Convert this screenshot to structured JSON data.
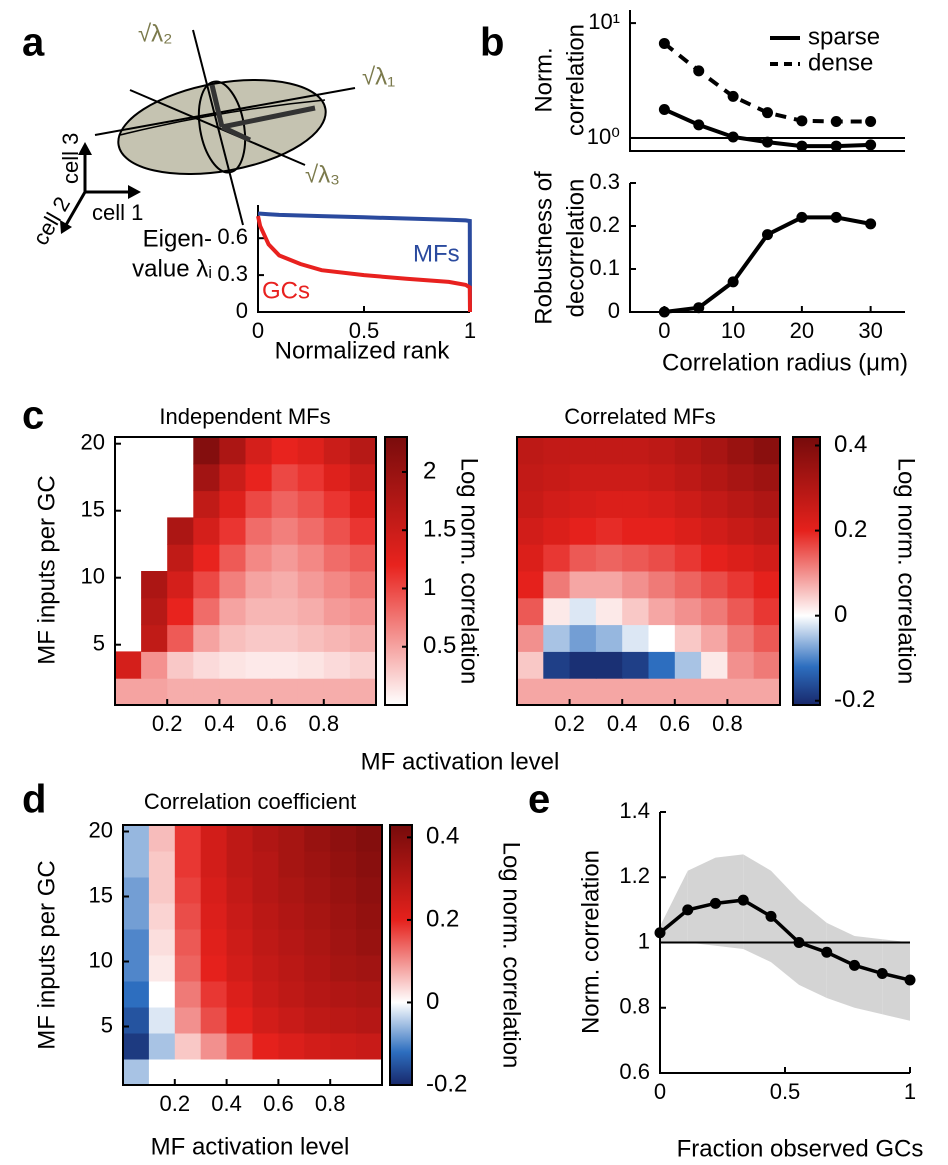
{
  "panel_labels": [
    "a",
    "b",
    "c",
    "d",
    "e"
  ],
  "diagram": {
    "eigen_labels": [
      "√λ₁",
      "√λ₂",
      "√λ₃"
    ],
    "cells": [
      "cell 1",
      "cell 2",
      "cell 3"
    ]
  },
  "chart_data": [
    {
      "type": "line",
      "xlabel": "Normalized rank",
      "ylabel": [
        "Eigen-",
        "value λᵢ"
      ],
      "x": [
        0,
        0.01,
        0.05,
        0.1,
        0.2,
        0.3,
        0.5,
        0.7,
        0.9,
        0.98,
        0.999,
        1
      ],
      "xlim": [
        0,
        1
      ],
      "ylim": [
        0,
        0.87
      ],
      "xticks": [
        0,
        0.5,
        1
      ],
      "yticks": [
        0,
        0.3,
        0.6
      ],
      "series": [
        {
          "name": "MFs",
          "color": "#2a4a9e",
          "values": [
            0.8,
            0.8,
            0.795,
            0.79,
            0.785,
            0.78,
            0.77,
            0.76,
            0.75,
            0.745,
            0.74,
            0
          ]
        },
        {
          "name": "GCs",
          "color": "#e8211f",
          "values": [
            0.78,
            0.7,
            0.55,
            0.46,
            0.39,
            0.34,
            0.3,
            0.27,
            0.245,
            0.22,
            0.2,
            0
          ]
        }
      ]
    },
    {
      "type": "line",
      "yscale": "log",
      "ylabel": [
        "Norm.",
        "correlation"
      ],
      "x": [
        0,
        5,
        10,
        15,
        20,
        25,
        30
      ],
      "xlim": [
        -5,
        35
      ],
      "ylim": [
        0.77,
        13
      ],
      "yticks": [
        {
          "value": 1,
          "label": "10⁰"
        },
        {
          "value": 10,
          "label": "10¹"
        }
      ],
      "hline": 1,
      "marker": true,
      "legend": "upper right",
      "series": [
        {
          "name": "sparse",
          "color": "#000000",
          "linestyle": "solid",
          "values": [
            1.77,
            1.3,
            1.02,
            0.92,
            0.85,
            0.85,
            0.87
          ]
        },
        {
          "name": "dense",
          "color": "#000000",
          "linestyle": "dashed",
          "values": [
            6.65,
            3.84,
            2.3,
            1.66,
            1.41,
            1.39,
            1.39
          ]
        }
      ]
    },
    {
      "type": "line",
      "xlabel": "Correlation radius (μm)",
      "ylabel": [
        "Robustness of",
        "decorrelation"
      ],
      "x": [
        0,
        5,
        10,
        15,
        20,
        25,
        30
      ],
      "xlim": [
        -5,
        35
      ],
      "ylim": [
        0,
        0.3
      ],
      "xticks": [
        0,
        10,
        20,
        30
      ],
      "yticks": [
        0,
        0.1,
        0.2,
        0.3
      ],
      "marker": true,
      "series": [
        {
          "color": "#000000",
          "linestyle": "solid",
          "values": [
            0,
            0.01,
            0.07,
            0.18,
            0.22,
            0.22,
            0.205
          ]
        }
      ]
    },
    {
      "type": "heatmap",
      "title": "Independent MFs",
      "ylabel": "MF inputs per GC",
      "xlabel": "MF activation level",
      "colorbar_label": "Log norm. correlation",
      "x": [
        0.05,
        0.15,
        0.25,
        0.35,
        0.45,
        0.55,
        0.65,
        0.75,
        0.85,
        0.95
      ],
      "y": [
        1.5,
        3.5,
        5.5,
        7.5,
        9.5,
        11.5,
        13.5,
        15.5,
        17.5,
        19.5
      ],
      "z": [
        [
          0.5,
          0.5,
          0.45,
          0.45,
          0.45,
          0.45,
          0.45,
          0.45,
          0.45,
          0.45
        ],
        [
          1.4,
          0.6,
          0.3,
          0.2,
          0.15,
          0.12,
          0.12,
          0.15,
          0.2,
          0.25
        ],
        [
          null,
          1.6,
          0.9,
          0.5,
          0.35,
          0.3,
          0.3,
          0.35,
          0.4,
          0.45
        ],
        [
          null,
          1.7,
          1.2,
          0.8,
          0.5,
          0.4,
          0.4,
          0.45,
          0.55,
          0.6
        ],
        [
          null,
          1.8,
          1.4,
          1.0,
          0.7,
          0.5,
          0.45,
          0.55,
          0.65,
          0.75
        ],
        [
          null,
          null,
          1.6,
          1.2,
          0.9,
          0.65,
          0.55,
          0.65,
          0.8,
          0.9
        ],
        [
          null,
          null,
          1.8,
          1.4,
          1.1,
          0.8,
          0.7,
          0.8,
          0.95,
          1.1
        ],
        [
          null,
          null,
          null,
          1.6,
          1.3,
          1.0,
          0.85,
          0.95,
          1.1,
          1.3
        ],
        [
          null,
          null,
          null,
          1.9,
          1.5,
          1.2,
          1.0,
          1.1,
          1.3,
          1.5
        ],
        [
          null,
          null,
          null,
          2.2,
          1.8,
          1.4,
          1.2,
          1.3,
          1.5,
          1.7
        ]
      ],
      "xlim": [
        0,
        1
      ],
      "ylim": [
        0.5,
        20.5
      ],
      "xticks": [
        0.2,
        0.4,
        0.6,
        0.8
      ],
      "yticks": [
        5,
        10,
        15,
        20
      ],
      "clim": [
        0,
        2.3
      ],
      "cticks": [
        0.5,
        1,
        1.5,
        2
      ],
      "colormap": [
        {
          "value": 0,
          "color": "#ffffff"
        },
        {
          "value": 1.2,
          "color": "#e8231e"
        },
        {
          "value": 2.3,
          "color": "#7a0c0c"
        }
      ]
    },
    {
      "type": "heatmap",
      "title": "Correlated MFs",
      "colorbar_label": "Log norm. correlation",
      "x": [
        0.05,
        0.15,
        0.25,
        0.35,
        0.45,
        0.55,
        0.65,
        0.75,
        0.85,
        0.95
      ],
      "y": [
        1.5,
        3.5,
        5.5,
        7.5,
        9.5,
        11.5,
        13.5,
        15.5,
        17.5,
        19.5
      ],
      "z": [
        [
          0.08,
          0.08,
          0.08,
          0.08,
          0.08,
          0.08,
          0.08,
          0.08,
          0.08,
          0.08
        ],
        [
          0.05,
          -0.18,
          -0.2,
          -0.2,
          -0.18,
          -0.12,
          -0.05,
          0.02,
          0.1,
          0.12
        ],
        [
          0.1,
          -0.05,
          -0.08,
          -0.06,
          -0.02,
          0.0,
          0.05,
          0.08,
          0.12,
          0.15
        ],
        [
          0.15,
          0.02,
          -0.02,
          0.02,
          0.05,
          0.08,
          0.1,
          0.12,
          0.15,
          0.18
        ],
        [
          0.2,
          0.12,
          0.08,
          0.08,
          0.1,
          0.12,
          0.14,
          0.16,
          0.18,
          0.2
        ],
        [
          0.22,
          0.18,
          0.15,
          0.14,
          0.15,
          0.16,
          0.18,
          0.2,
          0.22,
          0.24
        ],
        [
          0.24,
          0.22,
          0.2,
          0.19,
          0.2,
          0.2,
          0.22,
          0.24,
          0.26,
          0.28
        ],
        [
          0.26,
          0.24,
          0.23,
          0.22,
          0.22,
          0.23,
          0.25,
          0.27,
          0.29,
          0.31
        ],
        [
          0.27,
          0.26,
          0.25,
          0.25,
          0.25,
          0.26,
          0.28,
          0.3,
          0.32,
          0.34
        ],
        [
          0.28,
          0.27,
          0.27,
          0.27,
          0.27,
          0.28,
          0.3,
          0.32,
          0.35,
          0.38
        ]
      ],
      "xlim": [
        0,
        1
      ],
      "ylim": [
        0.5,
        20.5
      ],
      "xticks": [
        0.2,
        0.4,
        0.6,
        0.8
      ],
      "clim": [
        -0.21,
        0.42
      ],
      "cticks": [
        -0.2,
        0,
        0.2,
        0.4
      ],
      "colormap": [
        {
          "value": -0.21,
          "color": "#18286b"
        },
        {
          "value": -0.12,
          "color": "#2d6ebf"
        },
        {
          "value": 0,
          "color": "#ffffff"
        },
        {
          "value": 0.2,
          "color": "#e5211c"
        },
        {
          "value": 0.42,
          "color": "#760b0b"
        }
      ]
    },
    {
      "type": "heatmap",
      "title": "Correlation coefficient",
      "ylabel": "MF inputs per GC",
      "xlabel": "MF activation level",
      "colorbar_label": "Log norm. correlation",
      "x": [
        0.05,
        0.15,
        0.25,
        0.35,
        0.45,
        0.55,
        0.65,
        0.75,
        0.85,
        0.95
      ],
      "y": [
        1.5,
        3.5,
        5.5,
        7.5,
        9.5,
        11.5,
        13.5,
        15.5,
        17.5,
        19.5
      ],
      "z": [
        [
          -0.05,
          0.0,
          0.0,
          0.0,
          0.0,
          0.0,
          0.0,
          0.0,
          0.0,
          0.0
        ],
        [
          -0.18,
          -0.05,
          0.05,
          0.1,
          0.15,
          0.2,
          0.22,
          0.24,
          0.25,
          0.26
        ],
        [
          -0.15,
          -0.02,
          0.1,
          0.16,
          0.2,
          0.24,
          0.26,
          0.28,
          0.29,
          0.3
        ],
        [
          -0.12,
          0.0,
          0.12,
          0.18,
          0.22,
          0.26,
          0.28,
          0.3,
          0.31,
          0.32
        ],
        [
          -0.1,
          0.02,
          0.14,
          0.2,
          0.24,
          0.27,
          0.29,
          0.31,
          0.33,
          0.34
        ],
        [
          -0.1,
          0.03,
          0.15,
          0.21,
          0.25,
          0.28,
          0.3,
          0.32,
          0.34,
          0.36
        ],
        [
          -0.08,
          0.04,
          0.16,
          0.22,
          0.26,
          0.29,
          0.31,
          0.33,
          0.35,
          0.37
        ],
        [
          -0.08,
          0.05,
          0.17,
          0.23,
          0.27,
          0.3,
          0.32,
          0.34,
          0.36,
          0.38
        ],
        [
          -0.06,
          0.05,
          0.18,
          0.24,
          0.28,
          0.3,
          0.33,
          0.35,
          0.37,
          0.39
        ],
        [
          -0.06,
          0.06,
          0.18,
          0.24,
          0.28,
          0.31,
          0.33,
          0.36,
          0.38,
          0.4
        ]
      ],
      "xlim": [
        0,
        1
      ],
      "ylim": [
        0.5,
        20.5
      ],
      "xticks": [
        0.2,
        0.4,
        0.6,
        0.8
      ],
      "yticks": [
        5,
        10,
        15,
        20
      ],
      "clim": [
        -0.2,
        0.43
      ],
      "cticks": [
        -0.2,
        0,
        0.2,
        0.4
      ],
      "colormap": [
        {
          "value": -0.2,
          "color": "#18286b"
        },
        {
          "value": -0.12,
          "color": "#2d6ebf"
        },
        {
          "value": 0,
          "color": "#ffffff"
        },
        {
          "value": 0.2,
          "color": "#e5211c"
        },
        {
          "value": 0.43,
          "color": "#760b0b"
        }
      ]
    },
    {
      "type": "line",
      "xlabel": "Fraction observed GCs",
      "ylabel": "Norm. correlation",
      "x": [
        0,
        0.111,
        0.222,
        0.333,
        0.444,
        0.556,
        0.667,
        0.778,
        0.889,
        1
      ],
      "xlim": [
        0,
        1
      ],
      "ylim": [
        0.6,
        1.4
      ],
      "xticks": [
        0,
        0.5,
        1
      ],
      "yticks": [
        0.6,
        0.8,
        1,
        1.2,
        1.4
      ],
      "hline": 1,
      "marker": true,
      "band": {
        "color": "#d4d4d4",
        "lower": [
          1.0,
          1.0,
          0.99,
          0.98,
          0.94,
          0.87,
          0.83,
          0.8,
          0.78,
          0.76
        ],
        "upper": [
          1.05,
          1.22,
          1.26,
          1.27,
          1.22,
          1.13,
          1.06,
          1.02,
          1.01,
          1.0
        ]
      },
      "series": [
        {
          "color": "#000000",
          "linestyle": "solid",
          "values": [
            1.03,
            1.1,
            1.12,
            1.13,
            1.08,
            1.0,
            0.97,
            0.93,
            0.905,
            0.885
          ]
        }
      ]
    }
  ]
}
